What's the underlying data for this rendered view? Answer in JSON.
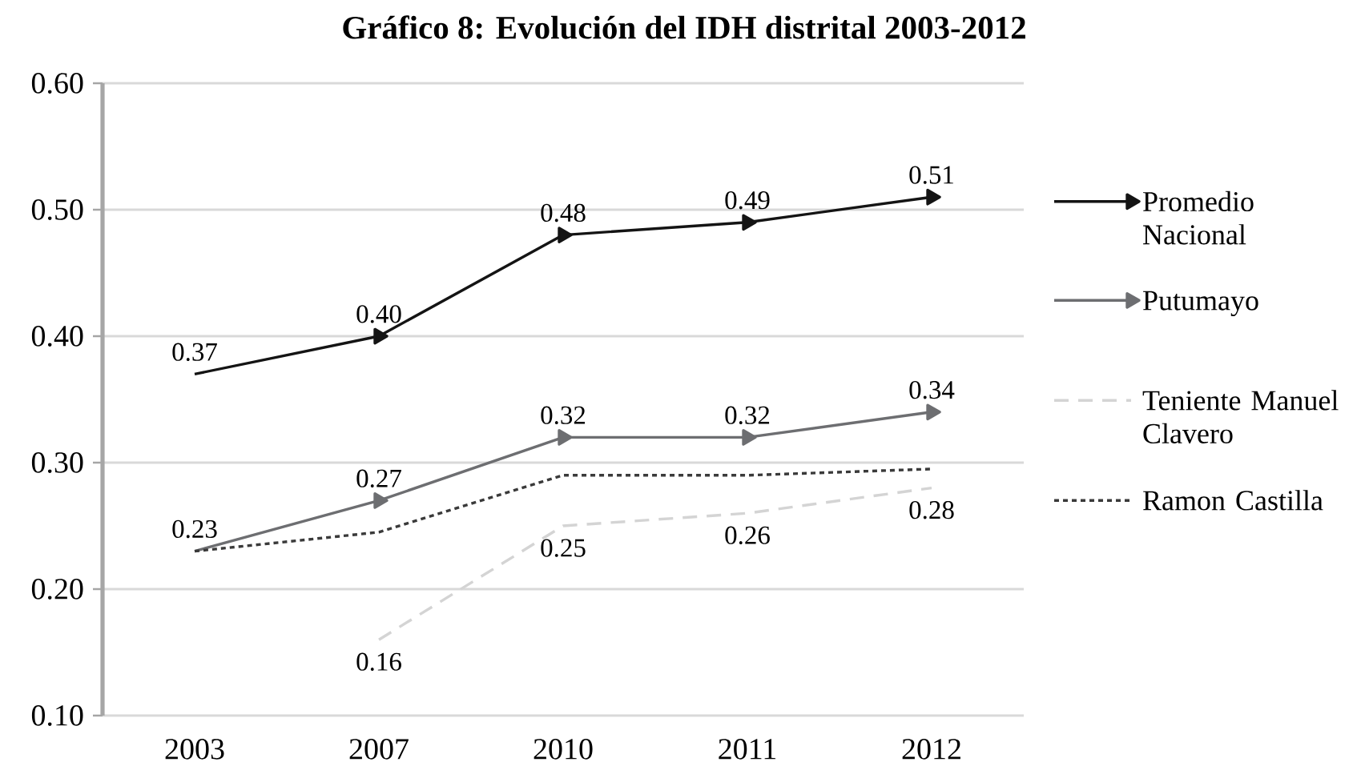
{
  "chart_data": {
    "type": "line",
    "title": "Gráfico 8: Evolución del IDH distrital 2003-2012",
    "categories": [
      "2003",
      "2007",
      "2010",
      "2011",
      "2012"
    ],
    "series": [
      {
        "name": "Promedio Nacional",
        "color": "#141414",
        "values": [
          0.37,
          0.4,
          0.48,
          0.49,
          0.51
        ],
        "value_labels": [
          "0.37",
          "0.40",
          "0.48",
          "0.49",
          "0.51"
        ],
        "marker": "triangle",
        "line_style": "solid"
      },
      {
        "name": "Putumayo",
        "color": "#6d6e71",
        "values": [
          0.23,
          0.27,
          0.32,
          0.32,
          0.34
        ],
        "value_labels": [
          "0.23",
          "0.27",
          "0.32",
          "0.32",
          "0.34"
        ],
        "marker": "triangle",
        "line_style": "solid"
      },
      {
        "name": "Teniente Manuel Clavero",
        "color": "#d4d4d4",
        "values": [
          null,
          0.16,
          0.25,
          0.26,
          0.28
        ],
        "value_labels": [
          null,
          "0.16",
          "0.25",
          "0.26",
          "0.28"
        ],
        "marker": "none",
        "line_style": "dashed"
      },
      {
        "name": "Ramon Castilla",
        "color": "#3a3a3a",
        "values": [
          0.23,
          0.245,
          0.29,
          0.29,
          0.295
        ],
        "marker": "none",
        "line_style": "dotted"
      }
    ],
    "ylim": [
      0.1,
      0.6
    ],
    "yticks": [
      {
        "value": 0.1,
        "label": "0.10"
      },
      {
        "value": 0.2,
        "label": "0.20"
      },
      {
        "value": 0.3,
        "label": "0.30"
      },
      {
        "value": 0.4,
        "label": "0.40"
      },
      {
        "value": 0.5,
        "label": "0.50"
      },
      {
        "value": 0.6,
        "label": "0.60"
      }
    ],
    "grid": "y",
    "legend": "right"
  }
}
